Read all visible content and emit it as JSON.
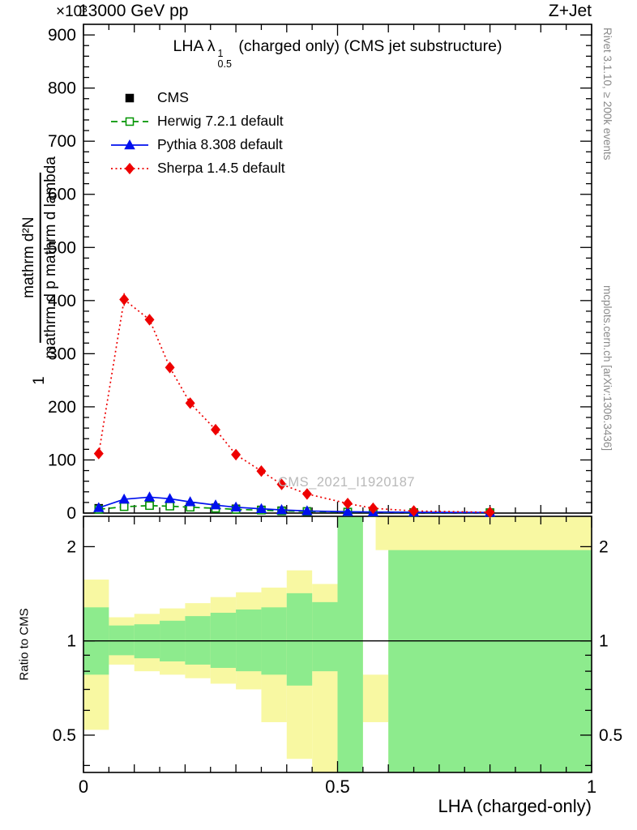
{
  "header": {
    "exponent": "×10³",
    "beam": "13000 GeV pp",
    "process": "Z+Jet"
  },
  "title": {
    "prefix": "LHA λ",
    "sup": "1",
    "sub": "0.5",
    "suffix": " (charged only) (CMS jet substructure)"
  },
  "ylabel": {
    "prefix": "1",
    "numerator": "mathrm d²N",
    "denominator": "mathrm d p mathrm d lambda"
  },
  "ratio_label": "Ratio to CMS",
  "xlabel": "LHA (charged-only)",
  "watermark": "CMS_2021_I1920187",
  "credits": {
    "top": "Rivet 3.1.10, ≥ 200k events",
    "bottom": "mcplots.cern.ch [arXiv:1306.3436]"
  },
  "legend": [
    {
      "label": "CMS",
      "color": "#000000",
      "marker": "square",
      "fill": true,
      "line": "none"
    },
    {
      "label": "Herwig 7.2.1 default",
      "color": "#009400",
      "marker": "square",
      "fill": false,
      "line": "dashed"
    },
    {
      "label": "Pythia 8.308 default",
      "color": "#0010ee",
      "marker": "triangle",
      "fill": true,
      "line": "solid"
    },
    {
      "label": "Sherpa 1.4.5 default",
      "color": "#ee0000",
      "marker": "diamond",
      "fill": true,
      "line": "dotted"
    }
  ],
  "chart_data": {
    "type": "line",
    "title": "LHA λ^1_0.5 (charged only) (CMS jet substructure)",
    "xlabel": "LHA (charged-only)",
    "ylabel": "1 / mathrm d²N / mathrm d p mathrm d lambda",
    "y_scale_exponent": "×10³",
    "x_range": [
      0,
      1
    ],
    "y_max": 920,
    "y_ticks": [
      0,
      100,
      200,
      300,
      400,
      500,
      600,
      700,
      800,
      900
    ],
    "x_ticks_labeled": [
      0,
      0.5,
      1
    ],
    "ratio_range": [
      0.38,
      2.5
    ],
    "ratio_ticks_labeled": [
      0.5,
      1,
      2
    ],
    "ratio_minor_ticks": [
      0.4,
      0.6,
      0.7,
      0.8,
      0.9
    ],
    "legend_position": "upper-left",
    "grid": false,
    "x": [
      0.03,
      0.08,
      0.13,
      0.17,
      0.21,
      0.26,
      0.3,
      0.35,
      0.39,
      0.44,
      0.52,
      0.57,
      0.65,
      0.8
    ],
    "series": [
      {
        "name": "CMS",
        "values": [
          9,
          13,
          15,
          14,
          12,
          10,
          8,
          6,
          4.5,
          3,
          2,
          1.5,
          1,
          0.8
        ]
      },
      {
        "name": "Herwig 7.2.1 default",
        "values": [
          7,
          12,
          14,
          13,
          11,
          9,
          7,
          5.5,
          4,
          3,
          2,
          1.5,
          1,
          0.7
        ]
      },
      {
        "name": "Pythia 8.308 default",
        "values": [
          10,
          26,
          30,
          27,
          21,
          15,
          11,
          8,
          6,
          4,
          2.5,
          2,
          1.5,
          1
        ]
      },
      {
        "name": "Sherpa 1.4.5 default",
        "values": [
          112,
          402,
          364,
          274,
          207,
          157,
          110,
          79,
          54,
          36,
          18,
          9,
          4,
          1.5
        ],
        "errors": [
          8,
          12,
          10,
          9,
          8,
          7,
          6,
          5,
          4,
          3,
          3,
          2,
          1.5,
          1
        ]
      }
    ],
    "ratio_bands": {
      "yellow": [
        {
          "x0": 0.0,
          "x1": 0.05,
          "lo": 0.52,
          "hi": 1.57
        },
        {
          "x0": 0.05,
          "x1": 0.1,
          "lo": 0.84,
          "hi": 1.19
        },
        {
          "x0": 0.1,
          "x1": 0.15,
          "lo": 0.8,
          "hi": 1.22
        },
        {
          "x0": 0.15,
          "x1": 0.2,
          "lo": 0.78,
          "hi": 1.27
        },
        {
          "x0": 0.2,
          "x1": 0.25,
          "lo": 0.76,
          "hi": 1.32
        },
        {
          "x0": 0.25,
          "x1": 0.3,
          "lo": 0.73,
          "hi": 1.38
        },
        {
          "x0": 0.3,
          "x1": 0.35,
          "lo": 0.7,
          "hi": 1.43
        },
        {
          "x0": 0.35,
          "x1": 0.4,
          "lo": 0.55,
          "hi": 1.48
        },
        {
          "x0": 0.4,
          "x1": 0.45,
          "lo": 0.42,
          "hi": 1.68
        },
        {
          "x0": 0.45,
          "x1": 0.5,
          "lo": 0.3,
          "hi": 1.52
        },
        {
          "x0": 0.5,
          "x1": 0.55,
          "lo": 0.3,
          "hi": 2.6
        },
        {
          "x0": 0.55,
          "x1": 0.6,
          "lo": 0.55,
          "hi": 0.78
        },
        {
          "x0": 0.575,
          "x1": 1.0,
          "lo": 1.95,
          "hi": 2.6
        },
        {
          "x0": 0.6,
          "x1": 1.0,
          "lo": 0.3,
          "hi": 2.6
        }
      ],
      "green": [
        {
          "x0": 0.0,
          "x1": 0.05,
          "lo": 0.78,
          "hi": 1.28
        },
        {
          "x0": 0.05,
          "x1": 0.1,
          "lo": 0.9,
          "hi": 1.12
        },
        {
          "x0": 0.1,
          "x1": 0.15,
          "lo": 0.88,
          "hi": 1.13
        },
        {
          "x0": 0.15,
          "x1": 0.2,
          "lo": 0.86,
          "hi": 1.16
        },
        {
          "x0": 0.2,
          "x1": 0.25,
          "lo": 0.84,
          "hi": 1.2
        },
        {
          "x0": 0.25,
          "x1": 0.3,
          "lo": 0.82,
          "hi": 1.23
        },
        {
          "x0": 0.3,
          "x1": 0.35,
          "lo": 0.8,
          "hi": 1.26
        },
        {
          "x0": 0.35,
          "x1": 0.4,
          "lo": 0.78,
          "hi": 1.28
        },
        {
          "x0": 0.4,
          "x1": 0.45,
          "lo": 0.72,
          "hi": 1.42
        },
        {
          "x0": 0.45,
          "x1": 0.5,
          "lo": 0.8,
          "hi": 1.33
        },
        {
          "x0": 0.5,
          "x1": 0.55,
          "lo": 0.3,
          "hi": 2.6
        },
        {
          "x0": 0.6,
          "x1": 1.0,
          "lo": 0.3,
          "hi": 1.95
        }
      ]
    },
    "colors": {
      "band_yellow": "#f8f8a2",
      "band_green": "#8deb8d",
      "ratio_line": "#000000"
    }
  }
}
